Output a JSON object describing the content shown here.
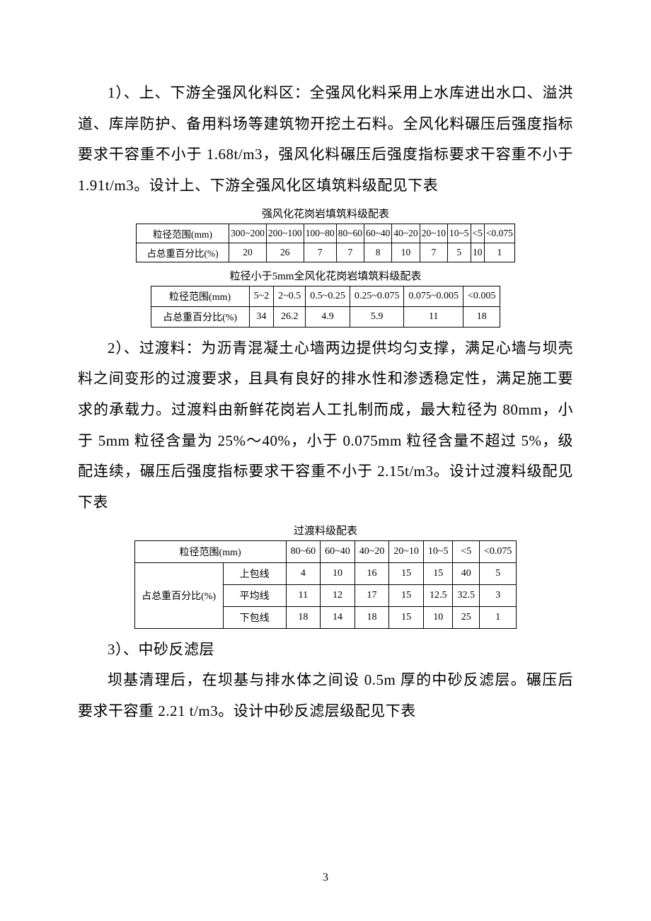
{
  "paragraphs": {
    "p1": "1）、上、下游全强风化料区：全强风化料采用上水库进出水口、溢洪道、库岸防护、备用料场等建筑物开挖土石料。全风化料碾压后强度指标要求干容重不小于 1.68t/m3，强风化料碾压后强度指标要求干容重不小于 1.91t/m3。设计上、下游全强风化区填筑料级配见下表",
    "p2": "2）、过渡料：为沥青混凝土心墙两边提供均匀支撑，满足心墙与坝壳料之间变形的过渡要求，且具有良好的排水性和渗透稳定性，满足施工要求的承载力。过渡料由新鲜花岗岩人工扎制而成，最大粒径为 80mm，小于 5mm 粒径含量为 25%～40%，小于 0.075mm 粒径含量不超过 5%，级配连续，碾压后强度指标要求干容重不小于 2.15t/m3。设计过渡料级配见下表",
    "p3": "3）、中砂反滤层",
    "p4": "坝基清理后，在坝基与排水体之间设 0.5m 厚的中砂反滤层。碾压后要求干容重 2.21 t/m3。设计中砂反滤层级配见下表"
  },
  "table1": {
    "caption": "强风化花岗岩填筑料级配表",
    "row_head": "粒径范围(mm)",
    "row2_head": "占总重百分比(%)",
    "cols": [
      "300~200",
      "200~100",
      "100~80",
      "80~60",
      "60~40",
      "40~20",
      "20~10",
      "10~5",
      "<5",
      "<0.075"
    ],
    "vals": [
      "20",
      "26",
      "7",
      "7",
      "8",
      "10",
      "7",
      "5",
      "10",
      "1"
    ]
  },
  "table2": {
    "caption": "粒径小于5mm全风化花岗岩填筑料级配表",
    "row_head": "粒径范围(mm)",
    "row2_head": "占总重百分比(%)",
    "cols": [
      "5~2",
      "2~0.5",
      "0.5~0.25",
      "0.25~0.075",
      "0.075~0.005",
      "<0.005"
    ],
    "vals": [
      "34",
      "26.2",
      "4.9",
      "5.9",
      "11",
      "18"
    ]
  },
  "table3": {
    "caption": "过渡料级配表",
    "col1_head": "粒径范围(mm)",
    "row_group_head": "占总重百分比(%)",
    "sub_rows": [
      "上包线",
      "平均线",
      "下包线"
    ],
    "cols": [
      "80~60",
      "60~40",
      "40~20",
      "20~10",
      "10~5",
      "<5",
      "<0.075"
    ],
    "vals_upper": [
      "4",
      "10",
      "16",
      "15",
      "15",
      "40",
      "5"
    ],
    "vals_avg": [
      "11",
      "12",
      "17",
      "15",
      "12.5",
      "32.5",
      "3"
    ],
    "vals_lower": [
      "18",
      "14",
      "18",
      "15",
      "10",
      "25",
      "1"
    ]
  },
  "page_number": "3"
}
